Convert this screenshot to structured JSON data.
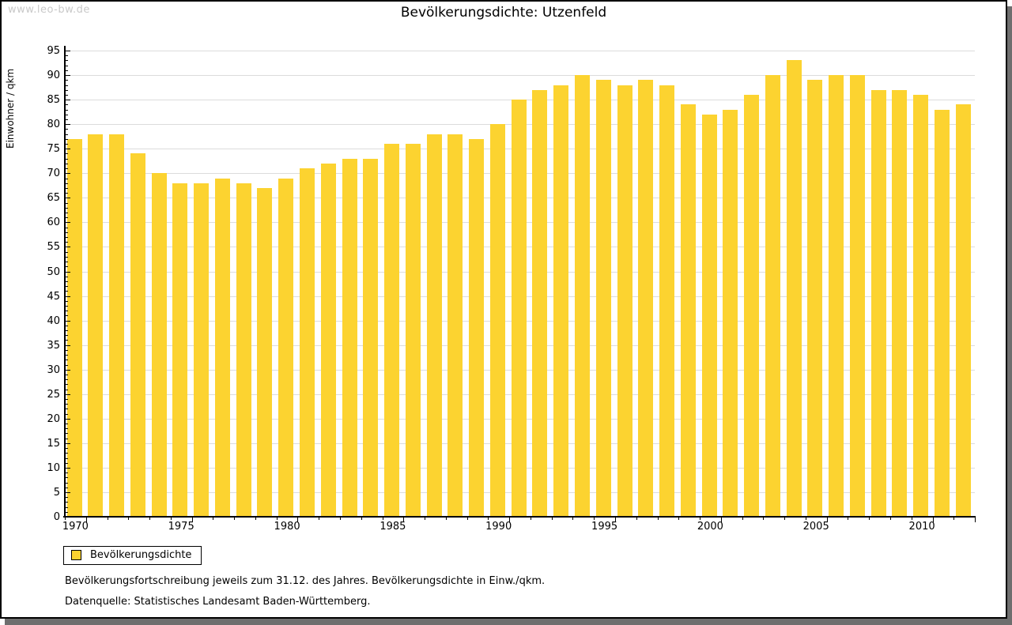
{
  "page": {
    "watermark": "www.leo-bw.de"
  },
  "chart_data": {
    "type": "bar",
    "title": "Bevölkerungsdichte: Utzenfeld",
    "ylabel": "Einwohner / qkm",
    "xlabel": "",
    "ylim": [
      0,
      95
    ],
    "ytick_step": 5,
    "yticks": [
      0,
      5,
      10,
      15,
      20,
      25,
      30,
      35,
      40,
      45,
      50,
      55,
      60,
      65,
      70,
      75,
      80,
      85,
      90,
      95
    ],
    "grid": "horizontal",
    "bar_color": "#FCD330",
    "categories": [
      "1970",
      "1971",
      "1972",
      "1973",
      "1974",
      "1975",
      "1976",
      "1977",
      "1978",
      "1979",
      "1980",
      "1981",
      "1982",
      "1983",
      "1984",
      "1985",
      "1986",
      "1987",
      "1988",
      "1989",
      "1990",
      "1991",
      "1992",
      "1993",
      "1994",
      "1995",
      "1996",
      "1997",
      "1998",
      "1999",
      "2000",
      "2001",
      "2002",
      "2003",
      "2004",
      "2005",
      "2006",
      "2007",
      "2008",
      "2009",
      "2010",
      "2011",
      "2012"
    ],
    "values": [
      77,
      78,
      78,
      74,
      70,
      68,
      68,
      69,
      68,
      67,
      69,
      71,
      72,
      73,
      73,
      76,
      76,
      78,
      78,
      77,
      80,
      85,
      87,
      88,
      90,
      89,
      88,
      89,
      88,
      84,
      82,
      83,
      86,
      90,
      93,
      89,
      90,
      90,
      87,
      87,
      86,
      83,
      84
    ],
    "xticks": [
      1970,
      1975,
      1980,
      1985,
      1990,
      1995,
      2000,
      2005,
      2010
    ],
    "legend": [
      {
        "label": "Bevölkerungsdichte",
        "color": "#FCD330"
      }
    ],
    "legend_position": "bottom-left"
  },
  "footer": {
    "note": "Bevölkerungsfortschreibung jeweils zum 31.12. des Jahres. Bevölkerungsdichte in Einw./qkm.",
    "source": "Datenquelle: Statistisches Landesamt Baden-Württemberg."
  },
  "colors": {
    "bar": "#FCD330",
    "gridline": "#dcdcdc",
    "axis": "#000000",
    "watermark_text": "#c9c9c9",
    "shadow": "#6e6e6e",
    "text": "#000000"
  }
}
